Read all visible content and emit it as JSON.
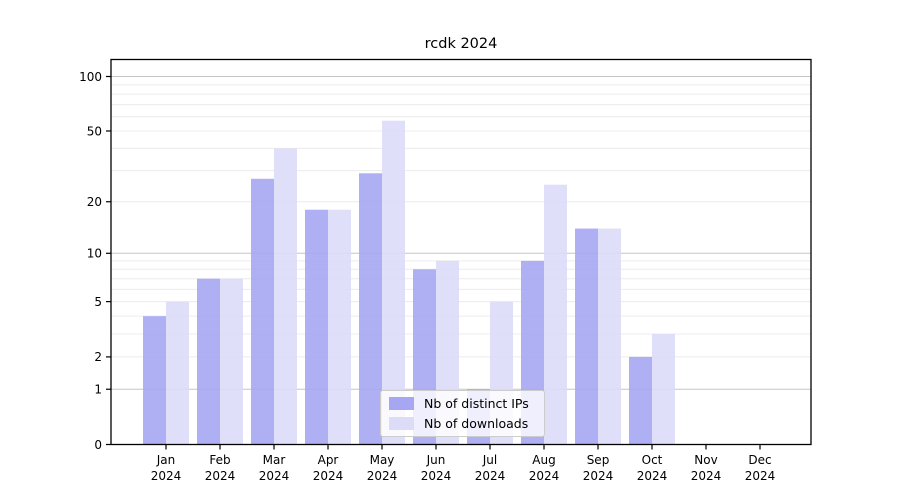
{
  "chart_data": {
    "type": "bar",
    "title": "rcdk 2024",
    "categories": [
      "Jan 2024",
      "Feb 2024",
      "Mar 2024",
      "Apr 2024",
      "May 2024",
      "Jun 2024",
      "Jul 2024",
      "Aug 2024",
      "Sep 2024",
      "Oct 2024",
      "Nov 2024",
      "Dec 2024"
    ],
    "series": [
      {
        "name": "Nb of distinct IPs",
        "color": "#a6a6f2",
        "values": [
          4,
          7,
          27,
          18,
          29,
          8,
          1,
          9,
          14,
          2,
          0,
          0
        ]
      },
      {
        "name": "Nb of downloads",
        "color": "#dcdcf9",
        "values": [
          5,
          7,
          40,
          18,
          57,
          9,
          5,
          25,
          14,
          3,
          0,
          0
        ]
      }
    ],
    "y_scale": "log1p",
    "ylim": [
      0,
      124
    ],
    "y_tick_labels": [
      "0",
      "1",
      "2",
      "5",
      "10",
      "20",
      "50",
      "100"
    ],
    "y_ticks": [
      0,
      1,
      2,
      5,
      10,
      20,
      50,
      100
    ],
    "major_gridlines": [
      1,
      10,
      100
    ],
    "minor_gridlines": [
      2,
      3,
      4,
      5,
      6,
      7,
      8,
      9,
      20,
      30,
      40,
      50,
      60,
      70,
      80,
      90
    ],
    "grid": true,
    "legend_position": "lower center inside"
  },
  "colors": {
    "bar_distinct_ips": "#a6a6f2",
    "bar_downloads": "#dcdcf9",
    "minor_grid": "#ececec",
    "major_grid": "#c6c6c6",
    "axis": "#000000",
    "legend_border": "#cccccc",
    "legend_bg": "rgba(255,255,255,0.8)",
    "background": "#ffffff"
  }
}
